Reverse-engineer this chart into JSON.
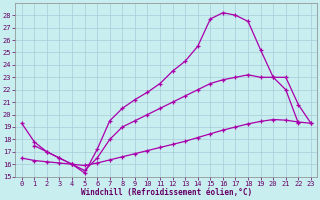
{
  "xlabel": "Windchill (Refroidissement éolien,°C)",
  "bg_color": "#c8eef0",
  "grid_color": "#a8ccd8",
  "line_color": "#aa00aa",
  "xlim": [
    -0.5,
    23.5
  ],
  "ylim": [
    15,
    29
  ],
  "xticks": [
    0,
    1,
    2,
    3,
    4,
    5,
    6,
    7,
    8,
    9,
    10,
    11,
    12,
    13,
    14,
    15,
    16,
    17,
    18,
    19,
    20,
    21,
    22,
    23
  ],
  "yticks": [
    15,
    16,
    17,
    18,
    19,
    20,
    21,
    22,
    23,
    24,
    25,
    26,
    27,
    28
  ],
  "curve1_x": [
    0,
    1,
    2,
    3,
    4,
    5,
    6,
    7,
    8,
    9,
    10,
    11,
    12,
    13,
    14,
    15,
    16,
    17,
    18,
    19,
    20,
    21,
    22
  ],
  "curve1_y": [
    19.3,
    17.8,
    17.0,
    16.5,
    16.0,
    15.3,
    17.2,
    19.5,
    20.5,
    21.2,
    21.8,
    22.5,
    23.5,
    24.3,
    25.5,
    27.7,
    28.2,
    28.0,
    27.5,
    25.2,
    23.0,
    22.0,
    19.3
  ],
  "curve2_x": [
    1,
    2,
    3,
    4,
    5,
    6,
    7,
    8,
    9,
    10,
    11,
    12,
    13,
    14,
    15,
    16,
    17,
    18,
    19,
    20,
    21,
    22,
    23
  ],
  "curve2_y": [
    17.5,
    17.0,
    16.5,
    16.0,
    15.5,
    16.5,
    18.0,
    19.0,
    19.5,
    20.0,
    20.5,
    21.0,
    21.5,
    22.0,
    22.5,
    22.8,
    23.0,
    23.2,
    23.0,
    23.0,
    23.0,
    20.8,
    19.3
  ],
  "curve3_x": [
    0,
    1,
    2,
    3,
    4,
    5,
    6,
    7,
    8,
    9,
    10,
    11,
    12,
    13,
    14,
    15,
    16,
    17,
    18,
    19,
    20,
    21,
    22,
    23
  ],
  "curve3_y": [
    16.5,
    16.3,
    16.2,
    16.1,
    16.0,
    15.9,
    16.1,
    16.35,
    16.6,
    16.85,
    17.1,
    17.35,
    17.6,
    17.85,
    18.15,
    18.45,
    18.75,
    19.0,
    19.25,
    19.45,
    19.6,
    19.55,
    19.4,
    19.3
  ]
}
